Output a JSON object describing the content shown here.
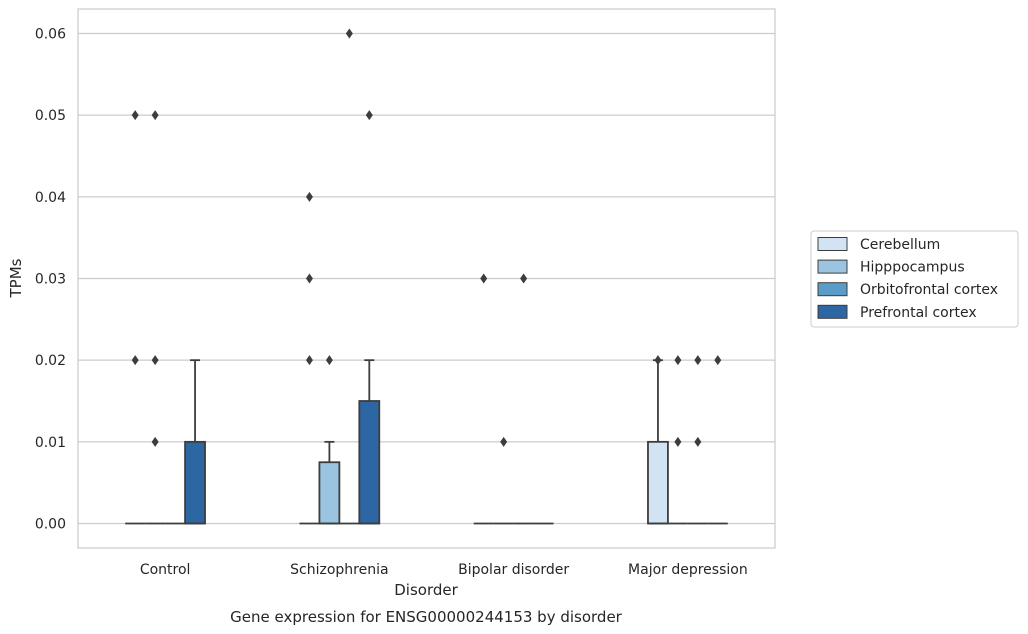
{
  "chart_data": {
    "type": "box",
    "caption": "Gene expression for ENSG00000244153 by disorder",
    "xlabel": "Disorder",
    "ylabel": "TPMs",
    "ylim": [
      -0.003,
      0.063
    ],
    "yticks": [
      "0.00",
      "0.01",
      "0.02",
      "0.03",
      "0.04",
      "0.05",
      "0.06"
    ],
    "ytick_values": [
      0,
      0.01,
      0.02,
      0.03,
      0.04,
      0.05,
      0.06
    ],
    "grid": "horizontal",
    "legend_position": "right",
    "categories": [
      "Control",
      "Schizophrenia",
      "Bipolar disorder",
      "Major depression"
    ],
    "series": [
      {
        "name": "Cerebellum",
        "color": "#d2e3f3",
        "boxes": [
          {
            "q1": 0,
            "median": 0,
            "q3": 0,
            "whisker_low": 0,
            "whisker_high": 0,
            "outliers": [
              0.05,
              0.02
            ]
          },
          {
            "q1": 0,
            "median": 0,
            "q3": 0,
            "whisker_low": 0,
            "whisker_high": 0,
            "outliers": [
              0.04,
              0.03,
              0.02
            ]
          },
          {
            "q1": 0,
            "median": 0,
            "q3": 0,
            "whisker_low": 0,
            "whisker_high": 0,
            "outliers": [
              0.03
            ]
          },
          {
            "q1": 0,
            "median": 0,
            "q3": 0.01,
            "whisker_low": 0,
            "whisker_high": 0.02,
            "outliers": [
              0.02
            ]
          }
        ]
      },
      {
        "name": "Hipppocampus",
        "color": "#9ac4df",
        "boxes": [
          {
            "q1": 0,
            "median": 0,
            "q3": 0,
            "whisker_low": 0,
            "whisker_high": 0,
            "outliers": [
              0.05,
              0.02,
              0.01
            ]
          },
          {
            "q1": 0,
            "median": 0,
            "q3": 0.0075,
            "whisker_low": 0,
            "whisker_high": 0.01,
            "outliers": [
              0.02
            ]
          },
          {
            "q1": 0,
            "median": 0,
            "q3": 0,
            "whisker_low": 0,
            "whisker_high": 0,
            "outliers": [
              0.01
            ]
          },
          {
            "q1": 0,
            "median": 0,
            "q3": 0,
            "whisker_low": 0,
            "whisker_high": 0,
            "outliers": [
              0.02,
              0.01
            ]
          }
        ]
      },
      {
        "name": "Orbitofrontal cortex",
        "color": "#5a9bc9",
        "boxes": [
          {
            "q1": 0,
            "median": 0,
            "q3": 0,
            "whisker_low": 0,
            "whisker_high": 0,
            "outliers": []
          },
          {
            "q1": 0,
            "median": 0,
            "q3": 0,
            "whisker_low": 0,
            "whisker_high": 0,
            "outliers": [
              0.06
            ]
          },
          {
            "q1": 0,
            "median": 0,
            "q3": 0,
            "whisker_low": 0,
            "whisker_high": 0,
            "outliers": [
              0.03
            ]
          },
          {
            "q1": 0,
            "median": 0,
            "q3": 0,
            "whisker_low": 0,
            "whisker_high": 0,
            "outliers": [
              0.02,
              0.01
            ]
          }
        ]
      },
      {
        "name": "Prefrontal cortex",
        "color": "#2c67a4",
        "boxes": [
          {
            "q1": 0,
            "median": 0,
            "q3": 0.01,
            "whisker_low": 0,
            "whisker_high": 0.02,
            "outliers": []
          },
          {
            "q1": 0,
            "median": 0,
            "q3": 0.015,
            "whisker_low": 0,
            "whisker_high": 0.02,
            "outliers": [
              0.05
            ]
          },
          {
            "q1": 0,
            "median": 0,
            "q3": 0,
            "whisker_low": 0,
            "whisker_high": 0,
            "outliers": []
          },
          {
            "q1": 0,
            "median": 0,
            "q3": 0,
            "whisker_low": 0,
            "whisker_high": 0,
            "outliers": [
              0.02
            ]
          }
        ]
      }
    ]
  }
}
